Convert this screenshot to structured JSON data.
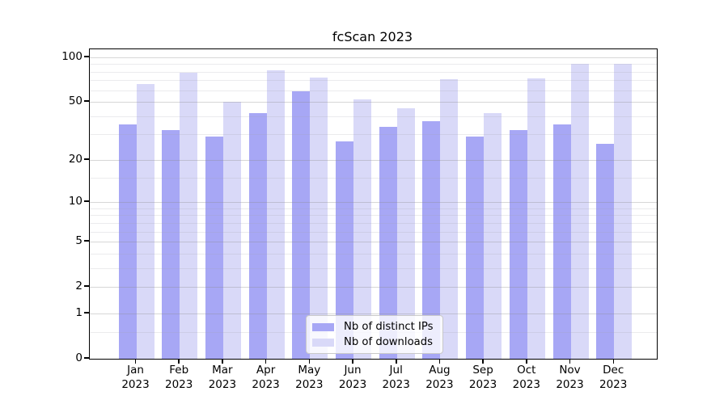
{
  "figure": {
    "title": "fcScan 2023"
  },
  "axis": {
    "year_line": "2023",
    "y_tick_labels": [
      "0",
      "1",
      "2",
      "5",
      "10",
      "20",
      "50",
      "100"
    ]
  },
  "chart_data": {
    "type": "bar",
    "title": "fcScan 2023",
    "categories": [
      "Jan 2023",
      "Feb 2023",
      "Mar 2023",
      "Apr 2023",
      "May 2023",
      "Jun 2023",
      "Jul 2023",
      "Aug 2023",
      "Sep 2023",
      "Oct 2023",
      "Nov 2023",
      "Dec 2023"
    ],
    "series": [
      {
        "name": "Nb of distinct IPs",
        "color": "#a7a7f5",
        "values": [
          35,
          32,
          29,
          42,
          59,
          27,
          34,
          37,
          29,
          32,
          35,
          26
        ]
      },
      {
        "name": "Nb of downloads",
        "color": "#d9d9f8",
        "values": [
          66,
          79,
          50,
          82,
          73,
          52,
          45,
          71,
          42,
          72,
          90,
          90
        ]
      }
    ],
    "yscale": "log1p",
    "y_ticks": [
      0,
      1,
      2,
      5,
      10,
      20,
      50,
      100
    ],
    "y_minor_ticks": [
      0.5,
      3,
      4,
      6,
      7,
      8,
      9,
      15,
      30,
      40,
      60,
      70,
      80,
      90
    ],
    "ylim": [
      0,
      114
    ],
    "xlabel": "",
    "ylabel": "",
    "grid": true,
    "grid_above_bars": true,
    "legend_position": "lower center",
    "background": "#ffffff"
  }
}
